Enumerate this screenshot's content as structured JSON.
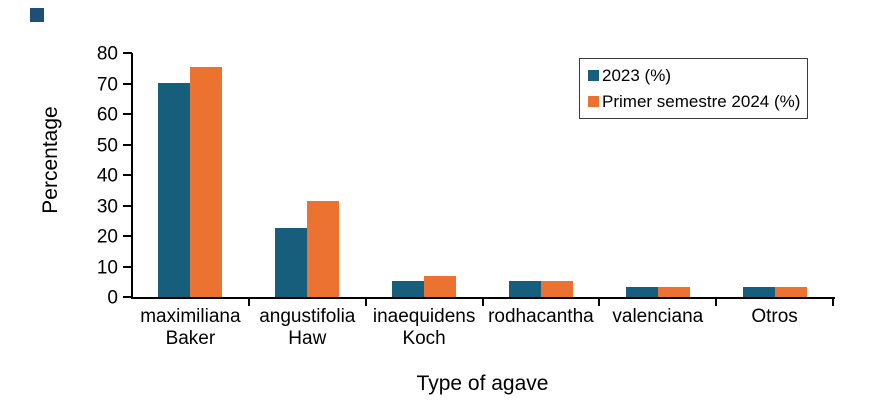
{
  "figure": {
    "background": "#ffffff",
    "corner_marker_color": "#1f4e79",
    "axis_color": "#000000"
  },
  "legend": {
    "border_color": "#3c3c3c",
    "position": "top-right"
  },
  "chart_data": {
    "type": "bar",
    "title": "",
    "xlabel": "Type of agave",
    "ylabel": "Percentage",
    "categories": [
      "maximiliana Baker",
      "angustifolia Haw",
      "inaequidens Koch",
      "rodhacantha",
      "valenciana",
      "Otros"
    ],
    "categories_wrapped": [
      "maximiliana\nBaker",
      "angustifolia\nHaw",
      "inaequidens\nKoch",
      "rodhacantha",
      "valenciana",
      "Otros"
    ],
    "series": [
      {
        "name": "2023 (%)",
        "color": "#175E7D",
        "values": [
          70.2,
          22.5,
          5.2,
          5.3,
          3.3,
          3.3
        ]
      },
      {
        "name": "Primer semestre 2024 (%)",
        "color": "#EB7231",
        "values": [
          75.5,
          31.5,
          7.0,
          5.3,
          3.3,
          3.3
        ]
      }
    ],
    "ylim": [
      0,
      80
    ],
    "yticks": [
      0,
      10,
      20,
      30,
      40,
      50,
      60,
      70,
      80
    ],
    "grid": false,
    "legend_position": "top-right"
  }
}
